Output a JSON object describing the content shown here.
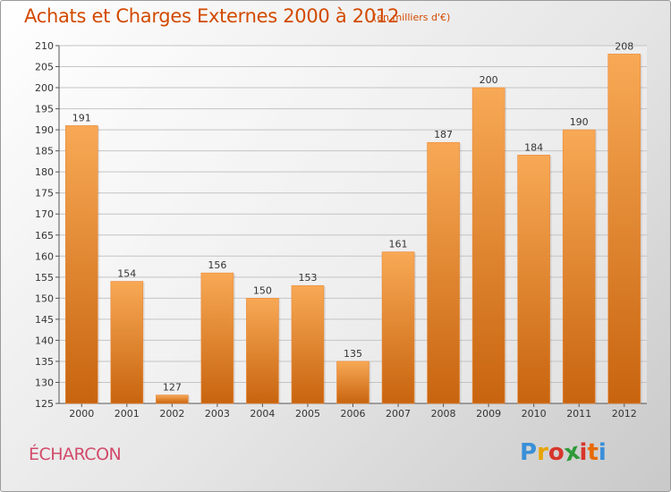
{
  "title": "Achats et Charges Externes 2000 à 2012",
  "subtitle": "(en milliers d'€)",
  "commune": "ÉCHARCON",
  "logo": [
    "P",
    "r",
    "o",
    "x",
    "i",
    "t",
    "i"
  ],
  "logo_colors": [
    "#3a8fd8",
    "#e8a400",
    "#d8352a",
    "#2f9a3a",
    "#d8352a",
    "#e86a00",
    "#3a8fd8"
  ],
  "colors": {
    "bar_top": "#f8a955",
    "bar_bottom": "#c8640f",
    "text": "#d24a00",
    "commune": "#d24a6a"
  },
  "chart_data": {
    "type": "bar",
    "categories": [
      "2000",
      "2001",
      "2002",
      "2003",
      "2004",
      "2005",
      "2006",
      "2007",
      "2008",
      "2009",
      "2010",
      "2011",
      "2012"
    ],
    "values": [
      191,
      154,
      127,
      156,
      150,
      153,
      135,
      161,
      187,
      200,
      184,
      190,
      208
    ],
    "ylim": [
      125,
      210
    ],
    "yticks": [
      125,
      130,
      135,
      140,
      145,
      150,
      155,
      160,
      165,
      170,
      175,
      180,
      185,
      190,
      195,
      200,
      205,
      210
    ],
    "grid": true
  }
}
